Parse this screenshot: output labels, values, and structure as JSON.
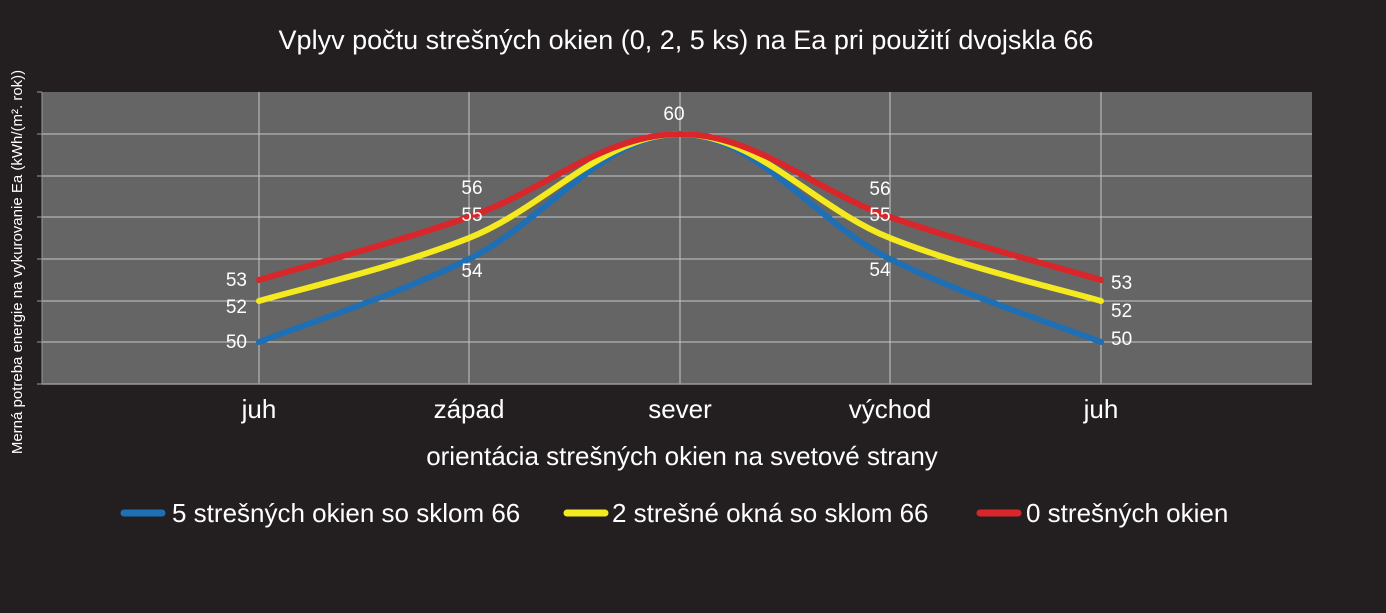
{
  "chart_data": {
    "type": "line",
    "title": "Vplyv počtu strešných okien (0, 2, 5 ks) na Ea pri použití dvojskla 66",
    "xlabel": "orientácia strešných okien na svetové strany",
    "ylabel": "Merná potreba energie na vykurovanie Ea (kWh/(m². rok))",
    "categories": [
      "juh",
      "západ",
      "sever",
      "východ",
      "juh"
    ],
    "series": [
      {
        "name": "5 strešných okien so sklom 66",
        "color": "#1f6fb5",
        "values": [
          50,
          54,
          60,
          54,
          50
        ]
      },
      {
        "name": "2 strešné okná so sklom 66",
        "color": "#f5ea1f",
        "values": [
          52,
          55,
          60,
          55,
          52
        ]
      },
      {
        "name": "0 strešných okien",
        "color": "#d9262b",
        "values": [
          53,
          56,
          60,
          56,
          53
        ]
      }
    ],
    "grid": true,
    "legend": "bottom",
    "colors": {
      "background": "#231f20",
      "plot_area": "#656565",
      "grid": "#c8c8c8",
      "text": "#ffffff"
    }
  }
}
